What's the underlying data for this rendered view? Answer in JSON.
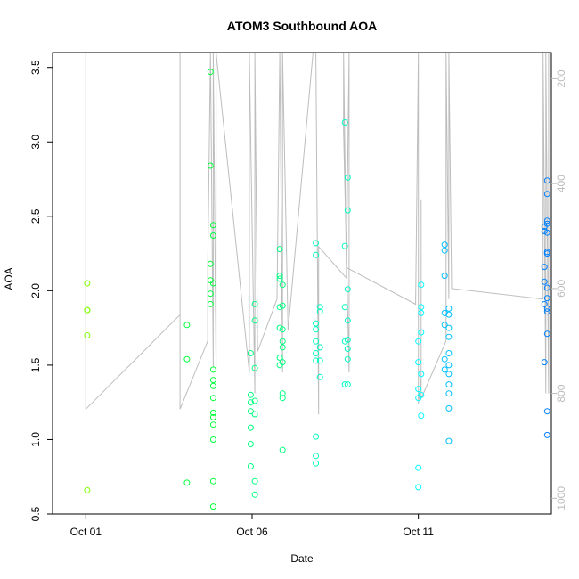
{
  "chart_data": {
    "type": "scatter",
    "title": "ATOM3 Southbound AOA",
    "xlabel": "Date",
    "ylabel": "AOA",
    "x_start": "Sep 30",
    "x_end": "Oct 15",
    "x_tick_values": [
      "Oct 01",
      "Oct 06",
      "Oct 11"
    ],
    "x_ticks": [
      "Oct 01",
      "Oct 06",
      "Oct 11"
    ],
    "ylim": [
      0.5,
      3.6
    ],
    "yticks": [
      0.5,
      1.0,
      1.5,
      2.0,
      2.5,
      3.0,
      3.5
    ],
    "y_tick_labels": [
      "0.5",
      "1.0",
      "1.5",
      "2.0",
      "2.5",
      "3.0",
      "3.5"
    ],
    "y2_label": "",
    "y2lim": [
      1030,
      150
    ],
    "y2_reversed": true,
    "y2ticks": [
      200,
      400,
      600,
      800,
      1000
    ],
    "y2_tick_labels": [
      "200",
      "400",
      "600",
      "800",
      "1000"
    ],
    "grid": false,
    "legend": "none",
    "point_colors": [
      "#7fff00",
      "#3cff00",
      "#00ff3c",
      "#00ff80",
      "#00ffc0",
      "#00ffff",
      "#00c0ff",
      "#0080ff"
    ],
    "line_color": "#bdbdbd",
    "points": [
      [
        "Oct 01 01:00",
        1.87
      ],
      [
        "Oct 01 01:00",
        1.87
      ],
      [
        "Oct 01 01:00",
        2.05
      ],
      [
        "Oct 01 01:00",
        1.7
      ],
      [
        "Oct 01 01:00",
        0.66
      ],
      [
        "Oct 04 01:00",
        1.77
      ],
      [
        "Oct 04 01:00",
        1.54
      ],
      [
        "Oct 04 01:00",
        0.71
      ],
      [
        "Oct 04 18:00",
        3.47
      ],
      [
        "Oct 04 18:00",
        2.84
      ],
      [
        "Oct 04 18:00",
        2.18
      ],
      [
        "Oct 04 18:00",
        2.07
      ],
      [
        "Oct 04 18:00",
        1.98
      ],
      [
        "Oct 04 18:00",
        1.91
      ],
      [
        "Oct 04 20:00",
        2.44
      ],
      [
        "Oct 04 20:00",
        2.37
      ],
      [
        "Oct 04 20:00",
        2.05
      ],
      [
        "Oct 04 20:00",
        1.47
      ],
      [
        "Oct 04 20:00",
        1.4
      ],
      [
        "Oct 04 20:00",
        1.36
      ],
      [
        "Oct 04 20:00",
        1.28
      ],
      [
        "Oct 04 20:00",
        1.18
      ],
      [
        "Oct 04 20:00",
        1.15
      ],
      [
        "Oct 04 20:00",
        1.1
      ],
      [
        "Oct 04 20:00",
        1.0
      ],
      [
        "Oct 04 20:00",
        0.72
      ],
      [
        "Oct 04 20:00",
        0.55
      ],
      [
        "Oct 05 23:00",
        1.58
      ],
      [
        "Oct 05 23:00",
        1.3
      ],
      [
        "Oct 05 23:00",
        1.25
      ],
      [
        "Oct 05 23:00",
        1.19
      ],
      [
        "Oct 05 23:00",
        1.08
      ],
      [
        "Oct 05 23:00",
        0.97
      ],
      [
        "Oct 05 23:00",
        0.82
      ],
      [
        "Oct 06 02:00",
        1.91
      ],
      [
        "Oct 06 02:00",
        1.8
      ],
      [
        "Oct 06 02:00",
        1.48
      ],
      [
        "Oct 06 02:00",
        1.26
      ],
      [
        "Oct 06 02:00",
        1.17
      ],
      [
        "Oct 06 02:00",
        0.72
      ],
      [
        "Oct 06 02:00",
        0.63
      ],
      [
        "Oct 06 20:00",
        2.28
      ],
      [
        "Oct 06 20:00",
        2.1
      ],
      [
        "Oct 06 20:00",
        2.08
      ],
      [
        "Oct 06 20:00",
        1.89
      ],
      [
        "Oct 06 20:00",
        1.75
      ],
      [
        "Oct 06 20:00",
        1.55
      ],
      [
        "Oct 06 20:00",
        1.5
      ],
      [
        "Oct 06 22:00",
        2.04
      ],
      [
        "Oct 06 22:00",
        1.9
      ],
      [
        "Oct 06 22:00",
        1.74
      ],
      [
        "Oct 06 22:00",
        1.66
      ],
      [
        "Oct 06 22:00",
        1.62
      ],
      [
        "Oct 06 22:00",
        1.52
      ],
      [
        "Oct 06 22:00",
        1.31
      ],
      [
        "Oct 06 22:00",
        1.28
      ],
      [
        "Oct 06 22:00",
        0.93
      ],
      [
        "Oct 07 22:00",
        2.32
      ],
      [
        "Oct 07 22:00",
        2.24
      ],
      [
        "Oct 07 22:00",
        1.78
      ],
      [
        "Oct 07 22:00",
        1.74
      ],
      [
        "Oct 07 22:00",
        1.66
      ],
      [
        "Oct 07 22:00",
        1.58
      ],
      [
        "Oct 07 22:00",
        1.53
      ],
      [
        "Oct 07 22:00",
        1.02
      ],
      [
        "Oct 07 22:00",
        0.89
      ],
      [
        "Oct 07 22:00",
        0.84
      ],
      [
        "Oct 08 01:00",
        1.89
      ],
      [
        "Oct 08 01:00",
        1.86
      ],
      [
        "Oct 08 01:00",
        1.62
      ],
      [
        "Oct 08 01:00",
        1.53
      ],
      [
        "Oct 08 01:00",
        1.42
      ],
      [
        "Oct 08 19:00",
        3.13
      ],
      [
        "Oct 08 19:00",
        2.3
      ],
      [
        "Oct 08 19:00",
        1.89
      ],
      [
        "Oct 08 19:00",
        1.66
      ],
      [
        "Oct 08 19:00",
        1.37
      ],
      [
        "Oct 08 21:00",
        2.76
      ],
      [
        "Oct 08 21:00",
        2.54
      ],
      [
        "Oct 08 21:00",
        2.01
      ],
      [
        "Oct 08 21:00",
        1.8
      ],
      [
        "Oct 08 21:00",
        1.67
      ],
      [
        "Oct 08 21:00",
        1.61
      ],
      [
        "Oct 08 21:00",
        1.54
      ],
      [
        "Oct 08 21:00",
        1.37
      ],
      [
        "Oct 11 00:00",
        1.66
      ],
      [
        "Oct 11 00:00",
        1.52
      ],
      [
        "Oct 11 00:00",
        1.34
      ],
      [
        "Oct 11 00:00",
        1.28
      ],
      [
        "Oct 11 00:00",
        0.81
      ],
      [
        "Oct 11 00:00",
        0.68
      ],
      [
        "Oct 11 02:00",
        2.04
      ],
      [
        "Oct 11 02:00",
        1.89
      ],
      [
        "Oct 11 02:00",
        1.85
      ],
      [
        "Oct 11 02:00",
        1.72
      ],
      [
        "Oct 11 02:00",
        1.44
      ],
      [
        "Oct 11 02:00",
        1.3
      ],
      [
        "Oct 11 02:00",
        1.16
      ],
      [
        "Oct 11 19:00",
        2.31
      ],
      [
        "Oct 11 19:00",
        2.27
      ],
      [
        "Oct 11 19:00",
        2.1
      ],
      [
        "Oct 11 19:00",
        1.85
      ],
      [
        "Oct 11 19:00",
        1.77
      ],
      [
        "Oct 11 19:00",
        1.54
      ],
      [
        "Oct 11 19:00",
        1.47
      ],
      [
        "Oct 11 22:00",
        1.88
      ],
      [
        "Oct 11 22:00",
        1.84
      ],
      [
        "Oct 11 22:00",
        1.75
      ],
      [
        "Oct 11 22:00",
        1.69
      ],
      [
        "Oct 11 22:00",
        1.58
      ],
      [
        "Oct 11 22:00",
        1.5
      ],
      [
        "Oct 11 22:00",
        1.44
      ],
      [
        "Oct 11 22:00",
        1.37
      ],
      [
        "Oct 11 22:00",
        1.31
      ],
      [
        "Oct 11 22:00",
        1.21
      ],
      [
        "Oct 11 22:00",
        0.99
      ],
      [
        "Oct 14 19:00",
        2.43
      ],
      [
        "Oct 14 19:00",
        2.4
      ],
      [
        "Oct 14 19:00",
        2.16
      ],
      [
        "Oct 14 19:00",
        2.06
      ],
      [
        "Oct 14 19:00",
        1.91
      ],
      [
        "Oct 14 19:00",
        1.52
      ],
      [
        "Oct 14 21:00",
        2.74
      ],
      [
        "Oct 14 21:00",
        2.65
      ],
      [
        "Oct 14 21:00",
        2.47
      ],
      [
        "Oct 14 21:00",
        2.45
      ],
      [
        "Oct 14 21:00",
        2.39
      ],
      [
        "Oct 14 21:00",
        2.26
      ],
      [
        "Oct 14 21:00",
        2.25
      ],
      [
        "Oct 14 21:00",
        2.02
      ],
      [
        "Oct 14 21:00",
        1.95
      ],
      [
        "Oct 14 21:00",
        1.88
      ],
      [
        "Oct 14 21:00",
        1.86
      ],
      [
        "Oct 14 21:00",
        1.71
      ],
      [
        "Oct 14 21:00",
        1.19
      ],
      [
        "Oct 14 21:00",
        1.03
      ]
    ],
    "profile_line": [
      [
        "Oct 01 00:00",
        150
      ],
      [
        "Oct 01 00:00",
        830
      ],
      [
        "Oct 03 20:00",
        650
      ],
      [
        "Oct 03 20:00",
        150
      ],
      [
        "Oct 03 20:00",
        830
      ],
      [
        "Oct 04 16:00",
        700
      ],
      [
        "Oct 04 16:00",
        560
      ],
      [
        "Oct 04 18:00",
        150
      ],
      [
        "Oct 04 20:00",
        750
      ],
      [
        "Oct 04 20:00",
        150
      ],
      [
        "Oct 04 22:00",
        760
      ],
      [
        "Oct 04 22:00",
        150
      ],
      [
        "Oct 05 22:00",
        760
      ],
      [
        "Oct 05 22:00",
        150
      ],
      [
        "Oct 06 02:00",
        800
      ],
      [
        "Oct 06 02:00",
        150
      ],
      [
        "Oct 06 04:00",
        720
      ],
      [
        "Oct 06 18:00",
        620
      ],
      [
        "Oct 06 20:00",
        150
      ],
      [
        "Oct 06 22:00",
        760
      ],
      [
        "Oct 06 22:00",
        150
      ],
      [
        "Oct 07 02:00",
        680
      ],
      [
        "Oct 07 20:00",
        150
      ],
      [
        "Oct 07 22:00",
        150
      ],
      [
        "Oct 08 00:00",
        840
      ],
      [
        "Oct 08 00:00",
        520
      ],
      [
        "Oct 08 20:00",
        580
      ],
      [
        "Oct 08 22:00",
        150
      ],
      [
        "Oct 08 22:00",
        760
      ],
      [
        "Oct 08 18:00",
        300
      ],
      [
        "Oct 08 18:00",
        150
      ],
      [
        "Oct 08 20:00",
        560
      ],
      [
        "Oct 10 22:00",
        630
      ],
      [
        "Oct 11 00:00",
        150
      ],
      [
        "Oct 11 00:00",
        820
      ],
      [
        "Oct 11 02:00",
        770
      ],
      [
        "Oct 11 02:00",
        430
      ],
      [
        "Oct 11 02:00",
        810
      ],
      [
        "Oct 11 20:00",
        700
      ],
      [
        "Oct 11 20:00",
        150
      ],
      [
        "Oct 11 22:00",
        620
      ],
      [
        "Oct 11 22:00",
        150
      ],
      [
        "Oct 12 00:00",
        600
      ],
      [
        "Oct 14 18:00",
        620
      ],
      [
        "Oct 14 18:00",
        150
      ],
      [
        "Oct 14 20:00",
        800
      ],
      [
        "Oct 14 20:00",
        150
      ],
      [
        "Oct 14 22:00",
        800
      ],
      [
        "Oct 14 22:00",
        150
      ]
    ]
  }
}
